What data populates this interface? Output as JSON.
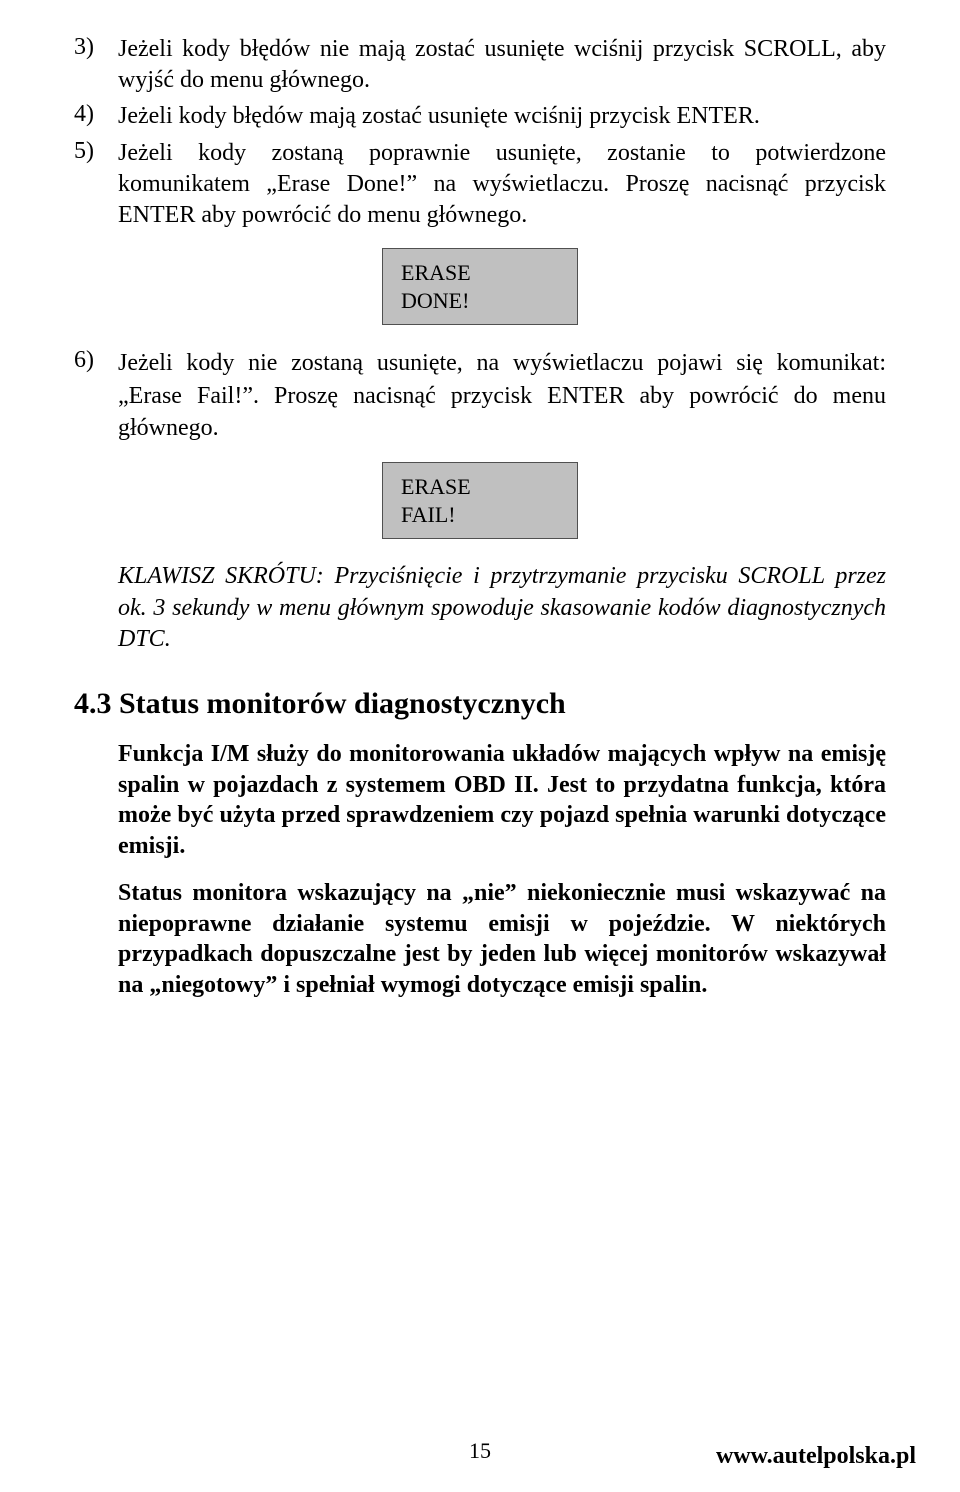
{
  "list": {
    "item3_num": "3)",
    "item3_text": "Jeżeli kody błędów nie mają zostać usunięte wciśnij przycisk SCROLL, aby wyjść do menu głównego.",
    "item4_num": "4)",
    "item4_text": "Jeżeli kody błędów mają zostać usunięte wciśnij przycisk ENTER.",
    "item5_num": "5)",
    "item5_text": "Jeżeli kody zostaną poprawnie usunięte, zostanie to potwierdzone komunikatem „Erase Done!” na wyświetlaczu. Proszę nacisnąć przycisk ENTER aby powrócić do menu głównego.",
    "item6_num": "6)",
    "item6_text": "Jeżeli kody nie zostaną usunięte, na wyświetlaczu pojawi się komunikat: „Erase Fail!”. Proszę nacisnąć przycisk ENTER aby powrócić do menu głównego."
  },
  "box1_line1": "ERASE",
  "box1_line2": "DONE!",
  "box2_line1": "ERASE",
  "box2_line2": "FAIL!",
  "shortcut_text": "KLAWISZ SKRÓTU: Przyciśnięcie i przytrzymanie przycisku SCROLL przez ok. 3 sekundy w menu głównym spowoduje skasowanie kodów diagnostycznych DTC.",
  "section_title": "4.3 Status monitorów diagnostycznych",
  "section_p1": "Funkcja I/M służy do monitorowania układów mających wpływ na emisję spalin w pojazdach z systemem OBD II. Jest to przydatna funkcja, która może być użyta przed sprawdzeniem czy pojazd spełnia warunki dotyczące emisji.",
  "section_p2": "Status monitora wskazujący na „nie” niekoniecznie musi wskazywać na niepoprawne działanie systemu emisji w pojeździe. W niektórych przypadkach dopuszczalne jest by jeden lub więcej monitorów wskazywał na „niegotowy” i spełniał wymogi dotyczące emisji spalin.",
  "page_number": "15",
  "footer_url": "www.autelpolska.pl"
}
